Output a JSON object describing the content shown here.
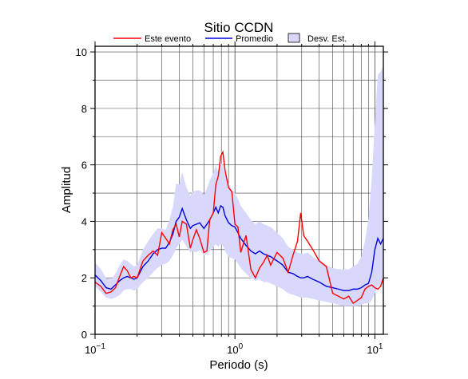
{
  "chart_data": {
    "type": "line",
    "title": "Sitio CCDN",
    "xlabel": "Periodo (s)",
    "ylabel": "Amplitud",
    "x_scale": "log",
    "xlim": [
      0.1,
      11.5
    ],
    "ylim": [
      0,
      10.2
    ],
    "x_ticks": [
      {
        "value": 0.1,
        "base": "10",
        "exp": "−1"
      },
      {
        "value": 1,
        "base": "10",
        "exp": "0"
      },
      {
        "value": 10,
        "base": "10",
        "exp": "1"
      }
    ],
    "y_ticks": [
      0,
      2,
      4,
      6,
      8,
      10
    ],
    "grid": true,
    "legend_position": "top",
    "colors": {
      "event": "#ff0000",
      "mean": "#0000dd",
      "band": "#d8d8fa"
    },
    "legend": [
      {
        "label": "Este evento",
        "kind": "line",
        "color": "#ff0000"
      },
      {
        "label": "Promedio",
        "kind": "line",
        "color": "#0000dd"
      },
      {
        "label": "Desv. Est.",
        "kind": "box",
        "color": "#d8d8fa"
      }
    ],
    "x": [
      0.1,
      0.11,
      0.12,
      0.13,
      0.14,
      0.15,
      0.16,
      0.17,
      0.18,
      0.19,
      0.2,
      0.22,
      0.24,
      0.26,
      0.28,
      0.3,
      0.32,
      0.34,
      0.36,
      0.38,
      0.4,
      0.42,
      0.45,
      0.48,
      0.5,
      0.53,
      0.56,
      0.6,
      0.63,
      0.66,
      0.7,
      0.73,
      0.76,
      0.79,
      0.82,
      0.85,
      0.9,
      0.95,
      1.0,
      1.05,
      1.1,
      1.2,
      1.3,
      1.4,
      1.5,
      1.6,
      1.7,
      1.8,
      2.0,
      2.2,
      2.4,
      2.6,
      2.8,
      2.95,
      3.1,
      3.3,
      3.6,
      4.0,
      4.5,
      5.0,
      5.5,
      6.0,
      6.5,
      7.0,
      7.5,
      8.0,
      8.5,
      9.0,
      9.5,
      10.0,
      10.5,
      11.0,
      11.5
    ],
    "series": [
      {
        "name": "Este evento",
        "values": [
          1.85,
          1.7,
          1.45,
          1.5,
          1.65,
          2.05,
          2.4,
          2.25,
          2.0,
          2.05,
          2.0,
          2.6,
          2.8,
          2.95,
          2.8,
          3.6,
          3.4,
          3.2,
          3.7,
          3.9,
          3.45,
          4.0,
          3.9,
          3.05,
          3.35,
          3.7,
          3.4,
          2.9,
          2.95,
          4.05,
          4.3,
          5.3,
          5.6,
          6.3,
          6.45,
          5.8,
          5.2,
          5.05,
          3.9,
          3.8,
          2.9,
          3.5,
          2.3,
          2.0,
          2.35,
          2.55,
          2.8,
          2.45,
          2.9,
          2.7,
          2.2,
          2.8,
          3.3,
          4.3,
          3.5,
          3.3,
          3.0,
          2.6,
          2.4,
          1.45,
          1.35,
          1.25,
          1.35,
          1.1,
          1.2,
          1.3,
          1.6,
          1.7,
          1.75,
          1.65,
          1.6,
          1.7,
          2.0
        ]
      },
      {
        "name": "Promedio",
        "values": [
          2.1,
          1.9,
          1.65,
          1.6,
          1.75,
          1.9,
          2.0,
          2.05,
          2.0,
          1.95,
          2.0,
          2.4,
          2.6,
          2.85,
          3.0,
          3.05,
          3.05,
          3.25,
          3.55,
          4.0,
          4.15,
          4.45,
          4.05,
          3.75,
          3.85,
          3.9,
          3.95,
          3.75,
          3.9,
          4.05,
          4.3,
          4.5,
          4.3,
          4.55,
          4.5,
          4.2,
          3.95,
          3.85,
          3.8,
          3.6,
          3.4,
          3.15,
          2.95,
          2.85,
          2.95,
          2.85,
          2.8,
          2.75,
          2.6,
          2.45,
          2.2,
          2.15,
          2.05,
          2.0,
          2.0,
          2.05,
          1.95,
          1.85,
          1.7,
          1.65,
          1.6,
          1.55,
          1.55,
          1.6,
          1.6,
          1.65,
          1.75,
          1.8,
          2.2,
          3.0,
          3.4,
          3.2,
          3.4
        ]
      }
    ],
    "band": {
      "name": "Desv. Est.",
      "lower": [
        1.7,
        1.5,
        1.3,
        1.25,
        1.3,
        1.4,
        1.55,
        1.6,
        1.6,
        1.55,
        1.6,
        1.85,
        2.0,
        2.2,
        2.35,
        2.45,
        2.5,
        2.6,
        2.8,
        3.05,
        3.2,
        3.35,
        3.1,
        2.9,
        2.95,
        2.9,
        3.0,
        2.8,
        2.85,
        2.95,
        3.1,
        3.2,
        3.1,
        3.2,
        3.15,
        2.95,
        2.75,
        2.7,
        2.65,
        2.5,
        2.35,
        2.15,
        2.0,
        1.9,
        1.95,
        1.85,
        1.85,
        1.8,
        1.7,
        1.6,
        1.45,
        1.4,
        1.35,
        1.3,
        1.3,
        1.3,
        1.25,
        1.2,
        1.15,
        1.1,
        1.05,
        1.0,
        1.0,
        1.0,
        1.0,
        1.05,
        1.1,
        1.1,
        1.2,
        1.45,
        1.7,
        1.7,
        1.8
      ],
      "upper": [
        2.55,
        2.3,
        2.0,
        1.95,
        2.15,
        2.45,
        2.65,
        2.6,
        2.5,
        2.4,
        2.45,
        3.0,
        3.3,
        3.55,
        3.75,
        3.75,
        3.7,
        4.05,
        4.5,
        5.35,
        5.3,
        5.75,
        5.2,
        4.9,
        5.05,
        5.1,
        5.1,
        4.95,
        5.15,
        5.45,
        5.7,
        6.0,
        5.75,
        6.05,
        6.0,
        5.65,
        5.35,
        5.1,
        5.0,
        4.8,
        4.55,
        4.3,
        4.05,
        3.9,
        4.0,
        3.9,
        3.85,
        3.8,
        3.6,
        3.4,
        3.1,
        3.0,
        2.9,
        2.85,
        2.85,
        2.9,
        2.75,
        2.6,
        2.45,
        2.35,
        2.3,
        2.3,
        2.3,
        2.4,
        2.5,
        2.75,
        3.3,
        4.1,
        5.5,
        7.5,
        9.2,
        9.3,
        9.5
      ]
    }
  }
}
